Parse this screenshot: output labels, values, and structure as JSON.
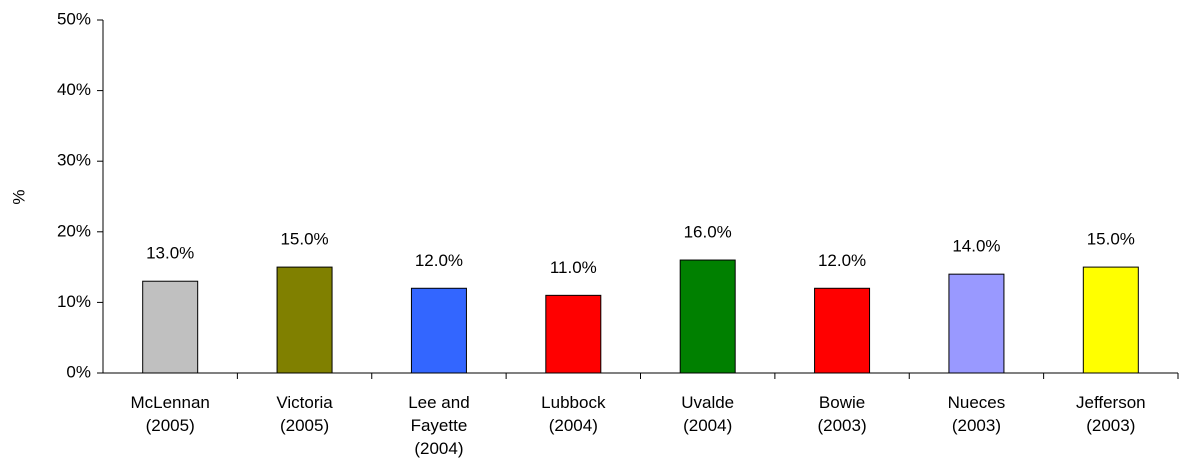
{
  "chart_data": {
    "type": "bar",
    "ylabel": "%",
    "categories": [
      "McLennan\n(2005)",
      "Victoria\n(2005)",
      "Lee and\nFayette\n(2004)",
      "Lubbock\n(2004)",
      "Uvalde\n(2004)",
      "Bowie\n(2003)",
      "Nueces\n(2003)",
      "Jefferson\n(2003)"
    ],
    "values": [
      13,
      15,
      12,
      11,
      16,
      12,
      14,
      15
    ],
    "value_labels": [
      "13.0%",
      "15.0%",
      "12.0%",
      "11.0%",
      "16.0%",
      "12.0%",
      "14.0%",
      "15.0%"
    ],
    "colors": [
      "#c0c0c0",
      "#808000",
      "#3366ff",
      "#ff0000",
      "#008000",
      "#ff0000",
      "#9999ff",
      "#ffff00"
    ],
    "ylim": [
      0,
      50
    ],
    "yticks": [
      {
        "value": 0,
        "label": "0%"
      },
      {
        "value": 10,
        "label": "10%"
      },
      {
        "value": 20,
        "label": "20%"
      },
      {
        "value": 30,
        "label": "30%"
      },
      {
        "value": 40,
        "label": "40%"
      },
      {
        "value": 50,
        "label": "50%"
      }
    ],
    "grid": false
  }
}
